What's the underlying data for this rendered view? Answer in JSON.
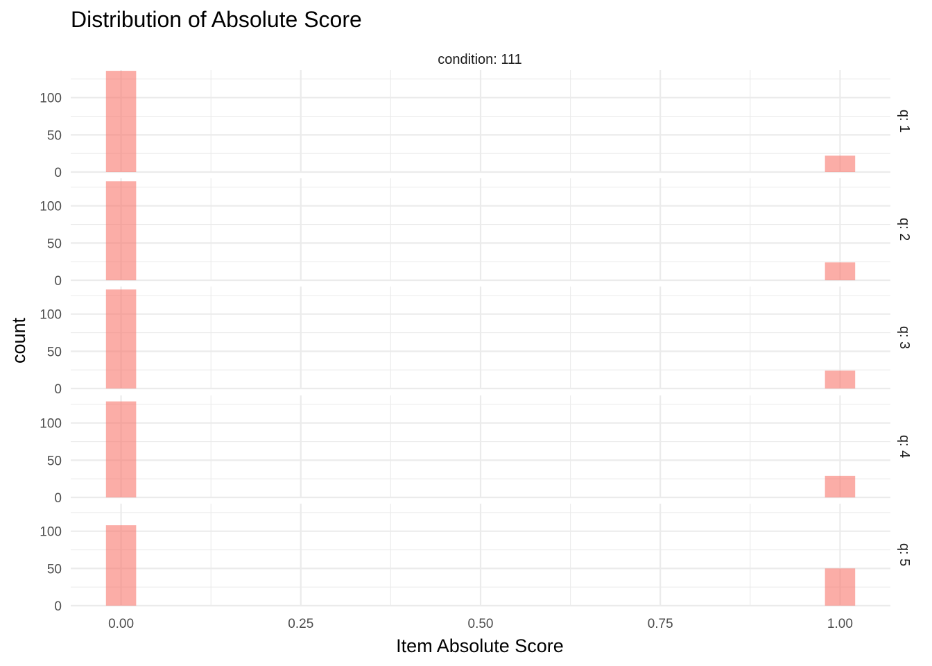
{
  "chart_data": {
    "type": "bar",
    "title": "Distribution of Absolute Score",
    "column_facet_label": "condition: 111",
    "xlabel": "Item Absolute Score",
    "ylabel": "count",
    "xlim": [
      -0.07,
      1.07
    ],
    "ylim": [
      0,
      137
    ],
    "x_ticks": [
      "0.00",
      "0.25",
      "0.50",
      "0.75",
      "1.00"
    ],
    "y_ticks": [
      "0",
      "50",
      "100"
    ],
    "bar_color": "#F8766D",
    "bar_opacity": 0.6,
    "bar_width": 0.042,
    "grid": true,
    "facets": [
      {
        "label": "q: 1",
        "x": [
          0,
          1
        ],
        "values": [
          136,
          22
        ]
      },
      {
        "label": "q: 2",
        "x": [
          0,
          1
        ],
        "values": [
          133,
          24
        ]
      },
      {
        "label": "q: 3",
        "x": [
          0,
          1
        ],
        "values": [
          133,
          24
        ]
      },
      {
        "label": "q: 4",
        "x": [
          0,
          1
        ],
        "values": [
          129,
          29
        ]
      },
      {
        "label": "q: 5",
        "x": [
          0,
          1
        ],
        "values": [
          108,
          50
        ]
      }
    ]
  }
}
